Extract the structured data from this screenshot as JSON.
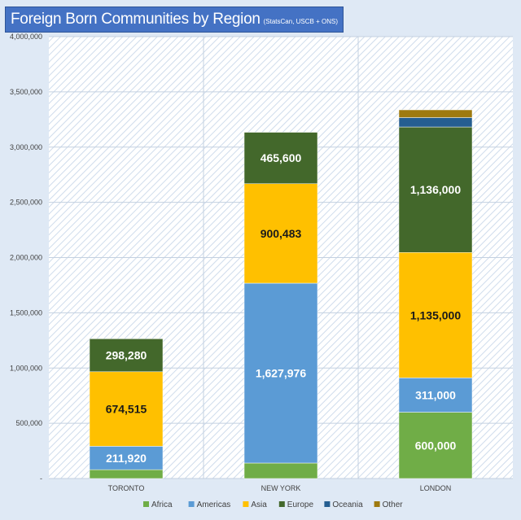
{
  "chart_data": {
    "type": "bar",
    "stacked": true,
    "title": "Foreign Born Communities by Region",
    "subtitle": "(StatsCan, USCB + ONS)",
    "xlabel": "",
    "ylabel": "",
    "categories": [
      "TORONTO",
      "NEW YORK",
      "LONDON"
    ],
    "ylim": [
      0,
      4000000
    ],
    "yticks": [
      0,
      500000,
      1000000,
      1500000,
      2000000,
      2500000,
      3000000,
      3500000,
      4000000
    ],
    "ytick_labels": [
      "-",
      "500,000",
      "1,000,000",
      "1,500,000",
      "2,000,000",
      "2,500,000",
      "3,000,000",
      "3,500,000",
      "4,000,000"
    ],
    "grid": true,
    "legend_position": "bottom",
    "series": [
      {
        "name": "Africa",
        "color": "#70ad47",
        "values": [
          80000,
          140000,
          600000
        ],
        "labels": [
          "",
          "",
          "600,000"
        ],
        "label_color": "#ffffff"
      },
      {
        "name": "Americas",
        "color": "#5b9bd5",
        "values": [
          211920,
          1627976,
          311000
        ],
        "labels": [
          "211,920",
          "1,627,976",
          "311,000"
        ],
        "label_color": "#ffffff"
      },
      {
        "name": "Asia",
        "color": "#ffc000",
        "values": [
          674515,
          900483,
          1135000
        ],
        "labels": [
          "674,515",
          "900,483",
          "1,135,000"
        ],
        "label_color": "#1a1a1a"
      },
      {
        "name": "Europe",
        "color": "#43682b",
        "values": [
          298280,
          465600,
          1136000
        ],
        "labels": [
          "298,280",
          "465,600",
          "1,136,000"
        ],
        "label_color": "#ffffff"
      },
      {
        "name": "Oceania",
        "color": "#255e91",
        "values": [
          0,
          0,
          85000
        ],
        "labels": [
          "",
          "",
          ""
        ],
        "label_color": "#ffffff"
      },
      {
        "name": "Other",
        "color": "#9e7a0f",
        "values": [
          0,
          0,
          70000
        ],
        "labels": [
          "",
          "",
          ""
        ],
        "label_color": "#ffffff"
      }
    ]
  }
}
